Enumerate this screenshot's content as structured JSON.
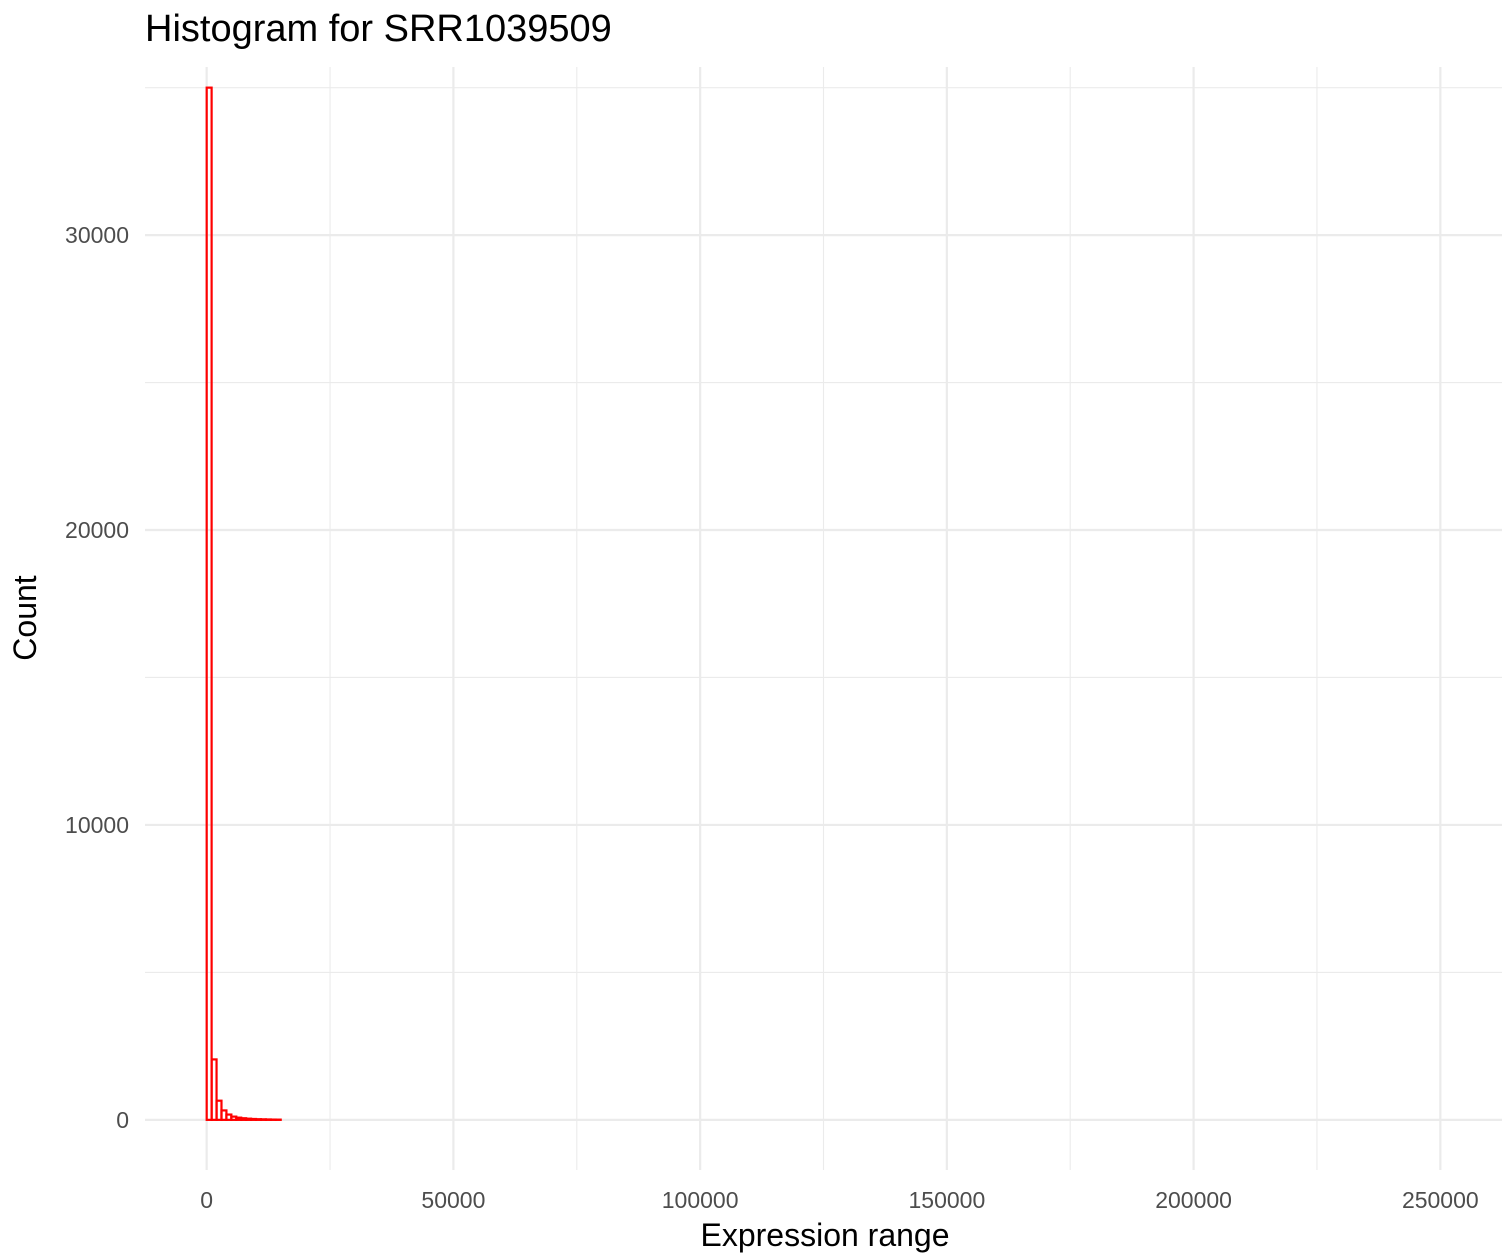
{
  "chart_data": {
    "type": "bar",
    "title": "Histogram for SRR1039509",
    "xlabel": "Expression range",
    "ylabel": "Count",
    "xlim": [
      -12500,
      262500
    ],
    "ylim": [
      -1700,
      35700
    ],
    "x_ticks": [
      0,
      50000,
      100000,
      150000,
      200000,
      250000
    ],
    "x_tick_labels": [
      "0",
      "50000",
      "100000",
      "150000",
      "200000",
      "250000"
    ],
    "x_minor_ticks": [
      25000,
      75000,
      125000,
      175000,
      225000
    ],
    "y_ticks": [
      0,
      10000,
      20000,
      30000
    ],
    "y_tick_labels": [
      "0",
      "10000",
      "20000",
      "30000"
    ],
    "y_minor_ticks": [
      5000,
      15000,
      25000,
      35000
    ],
    "grid": true,
    "legend": "none",
    "bar_color": "#ff0000",
    "bin_width": 1000,
    "bins_start": 0,
    "bins_end": 250000,
    "x": [
      500,
      1500,
      2500,
      3500,
      4500,
      5500,
      6500,
      7500,
      8500,
      9500,
      10500,
      11500,
      12500,
      13500,
      14500
    ],
    "values": [
      35000,
      2050,
      650,
      320,
      180,
      110,
      75,
      55,
      40,
      30,
      22,
      18,
      14,
      10,
      8
    ]
  }
}
